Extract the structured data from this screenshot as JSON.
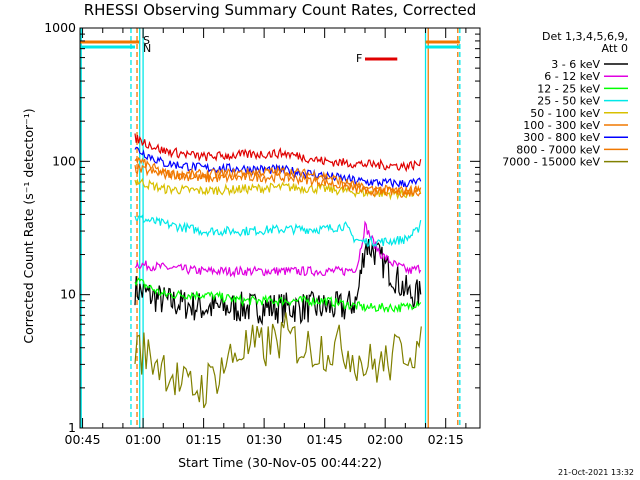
{
  "chart_data": {
    "type": "line",
    "title": "RHESSI Observing Summary Count Rates, Corrected",
    "xlabel": "Start Time (30-Nov-05 00:44:22)",
    "ylabel": "Corrected Count Rate (s⁻¹ detector⁻¹)",
    "yscale": "log",
    "ylim": [
      1,
      1000
    ],
    "xlim": [
      "00:44:22",
      "02:23:30"
    ],
    "xtick_labels": [
      "00:45",
      "01:00",
      "01:15",
      "01:30",
      "01:45",
      "02:00",
      "02:15"
    ],
    "xticks": [
      "00:45",
      "01:00",
      "01:15",
      "01:30",
      "01:45",
      "02:00",
      "02:15"
    ],
    "ytick_labels": [
      "1",
      "10",
      "100",
      "1000"
    ],
    "yticks": [
      1,
      10,
      100,
      1000
    ],
    "legend_header": [
      "Det 1,3,4,5,6,9,",
      "Att 0"
    ],
    "legend_position": "right",
    "series": [
      {
        "name": "3 - 6 keV",
        "color": "#000000",
        "x": [
          "00:58",
          "01:05",
          "01:15",
          "01:25",
          "01:35",
          "01:45",
          "01:50",
          "01:53",
          "01:55",
          "01:57",
          "01:59",
          "02:02",
          "02:06",
          "02:09"
        ],
        "y": [
          11,
          9,
          8,
          8,
          8,
          8,
          8,
          9,
          24,
          22,
          18,
          14,
          10,
          10
        ]
      },
      {
        "name": "6 - 12 keV",
        "color": "#e000e0",
        "x": [
          "00:58",
          "01:05",
          "01:15",
          "01:25",
          "01:35",
          "01:45",
          "01:50",
          "01:53",
          "01:55",
          "01:57",
          "01:59",
          "02:02",
          "02:06",
          "02:09"
        ],
        "y": [
          17,
          16,
          15,
          15,
          15,
          15,
          15,
          16,
          33,
          25,
          20,
          17,
          15,
          16
        ]
      },
      {
        "name": "12 - 25 keV",
        "color": "#00ff00",
        "x": [
          "00:58",
          "01:05",
          "01:15",
          "01:25",
          "01:35",
          "01:45",
          "01:55",
          "02:05",
          "02:09"
        ],
        "y": [
          13,
          10,
          10,
          9,
          9,
          9,
          8,
          8,
          9
        ]
      },
      {
        "name": "25 - 50 keV",
        "color": "#00e8e8",
        "x": [
          "00:58",
          "01:05",
          "01:15",
          "01:25",
          "01:35",
          "01:45",
          "01:50",
          "01:52",
          "01:54",
          "02:00",
          "02:05",
          "02:08",
          "02:09"
        ],
        "y": [
          38,
          34,
          30,
          30,
          31,
          31,
          33,
          27,
          25,
          25,
          26,
          30,
          38
        ]
      },
      {
        "name": "50 - 100 keV",
        "color": "#d8c000",
        "x": [
          "00:58",
          "01:05",
          "01:15",
          "01:25",
          "01:35",
          "01:45",
          "01:55",
          "02:05",
          "02:09"
        ],
        "y": [
          72,
          62,
          60,
          62,
          64,
          62,
          58,
          57,
          58
        ]
      },
      {
        "name": "100 - 300 keV",
        "color": "#f07800",
        "x": [
          "00:58",
          "01:05",
          "01:15",
          "01:25",
          "01:35",
          "01:45",
          "01:55",
          "02:05",
          "02:09"
        ],
        "y": [
          105,
          82,
          74,
          76,
          76,
          70,
          60,
          58,
          60
        ]
      },
      {
        "name": "300 - 800 keV",
        "color": "#0000ff",
        "x": [
          "00:58",
          "01:05",
          "01:15",
          "01:25",
          "01:35",
          "01:45",
          "01:55",
          "02:05",
          "02:09"
        ],
        "y": [
          125,
          97,
          89,
          88,
          86,
          78,
          70,
          68,
          70
        ]
      },
      {
        "name": "800 - 7000 keV",
        "color": "#f07800",
        "x": [
          "00:58",
          "01:05",
          "01:15",
          "01:25",
          "01:35",
          "01:45",
          "01:55",
          "02:05",
          "02:09"
        ],
        "y": [
          88,
          80,
          80,
          82,
          84,
          78,
          62,
          60,
          62
        ]
      },
      {
        "name": "7000 - 15000 keV",
        "color": "#808000",
        "x": [
          "00:58",
          "01:05",
          "01:10",
          "01:15",
          "01:20",
          "01:25",
          "01:30",
          "01:35",
          "01:40",
          "01:45",
          "01:50",
          "01:55",
          "02:00",
          "02:05",
          "02:09"
        ],
        "y": [
          4,
          3,
          2,
          2,
          3,
          4,
          4,
          5,
          4,
          4,
          4,
          3,
          3,
          4,
          4
        ]
      },
      {
        "name": "",
        "color": "#e00000",
        "x": [
          "00:58",
          "01:05",
          "01:15",
          "01:25",
          "01:35",
          "01:45",
          "01:55",
          "02:05",
          "02:09"
        ],
        "y": [
          150,
          120,
          108,
          112,
          115,
          100,
          95,
          92,
          96
        ]
      }
    ],
    "flags": [
      {
        "label": "S",
        "color": "#f07800",
        "position": "top",
        "x_start": "00:44:22",
        "x_end": "00:59:00"
      },
      {
        "label": "N",
        "color": "#00e8e8",
        "position": "top",
        "x_start": "00:44:22",
        "x_end": "00:58:00"
      },
      {
        "label": "F",
        "color": "#e00000",
        "position": "top",
        "x_start": "01:55",
        "x_end": "02:03"
      }
    ],
    "vertical_lines": [
      {
        "x": "00:44:40",
        "color": "#00e8e8",
        "style": "solid"
      },
      {
        "x": "00:57:00",
        "color": "#00e8e8",
        "style": "dashed"
      },
      {
        "x": "00:58:30",
        "color": "#f07800",
        "style": "dashed"
      },
      {
        "x": "00:59:10",
        "color": "#00e8e8",
        "style": "solid"
      },
      {
        "x": "01:00:00",
        "color": "#00e8e8",
        "style": "solid"
      },
      {
        "x": "02:10:00",
        "color": "#00e8e8",
        "style": "solid"
      },
      {
        "x": "02:10:40",
        "color": "#f07800",
        "style": "solid"
      },
      {
        "x": "02:18:00",
        "color": "#f07800",
        "style": "dashed"
      },
      {
        "x": "02:18:30",
        "color": "#00e8e8",
        "style": "dashed"
      }
    ],
    "footer_date": "21-Oct-2021 13:32"
  }
}
